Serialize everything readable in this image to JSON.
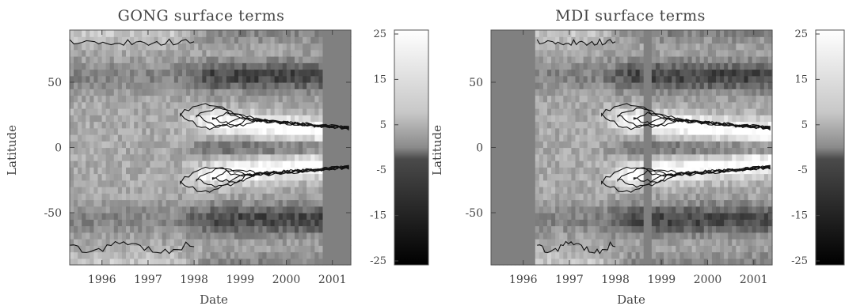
{
  "chart_data": [
    {
      "type": "heatmap",
      "title": "GONG surface terms",
      "xlabel": "Date",
      "ylabel": "Latitude",
      "xlim": [
        1995.3,
        2001.4
      ],
      "ylim": [
        -90,
        90
      ],
      "x_ticks": [
        "1996",
        "1997",
        "1998",
        "1999",
        "2000",
        "2001"
      ],
      "y_ticks": [
        "50",
        "0",
        "-50"
      ],
      "colorbar": {
        "ticks": [
          "25",
          "15",
          "5",
          "-5",
          "-15",
          "-25"
        ],
        "range": [
          -25,
          25
        ]
      },
      "data_gaps": [
        [
          2000.75,
          2001.4
        ]
      ],
      "description_features": {
        "activity_belts": "bright bands near ±20° latitude starting ~1997.5 and converging toward the equator by 2001",
        "dark_bands": "dark bands near ±55° and at equator 1998–2001"
      }
    },
    {
      "type": "heatmap",
      "title": "MDI surface terms",
      "xlabel": "Date",
      "ylabel": "Latitude",
      "xlim": [
        1995.3,
        2001.4
      ],
      "ylim": [
        -90,
        90
      ],
      "x_ticks": [
        "1996",
        "1997",
        "1998",
        "1999",
        "2000",
        "2001"
      ],
      "y_ticks": [
        "50",
        "0",
        "-50"
      ],
      "colorbar": {
        "ticks": [
          "25",
          "15",
          "5",
          "-5",
          "-15",
          "-25"
        ],
        "range": [
          -25,
          25
        ]
      },
      "data_gaps": [
        [
          1995.3,
          1996.3
        ],
        [
          1998.6,
          1998.75
        ],
        [
          1998.95,
          1999.0
        ]
      ],
      "description_features": {
        "activity_belts": "bright bands near ±20° latitude starting ~1997.5 and converging toward the equator by 2001",
        "dark_bands": "dark bands near ±55° and at equator 1998–2001"
      }
    }
  ]
}
